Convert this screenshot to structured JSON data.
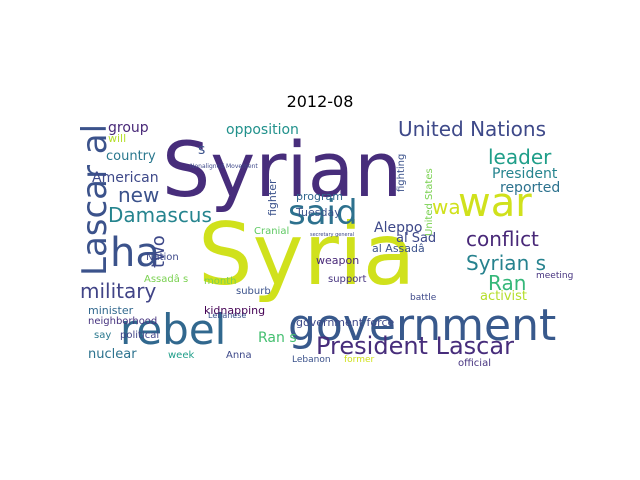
{
  "title": "2012-08",
  "words": [
    {
      "text": "Syria",
      "color": "#d0e11c"
    },
    {
      "text": "Syrian",
      "color": "#472d7b"
    },
    {
      "text": "government",
      "color": "#38598c"
    },
    {
      "text": "rebel",
      "color": "#31688e"
    },
    {
      "text": "war",
      "color": "#d0e11c"
    },
    {
      "text": "said",
      "color": "#2d718e"
    },
    {
      "text": "ha",
      "color": "#3b528b"
    },
    {
      "text": "President Lascar",
      "color": "#472d7b"
    },
    {
      "text": "Lascar al",
      "color": "#3b528b"
    },
    {
      "text": "United Nations",
      "color": "#3e4989"
    },
    {
      "text": "leader",
      "color": "#1f9e89"
    },
    {
      "text": "conflict",
      "color": "#482878"
    },
    {
      "text": "Syrian s",
      "color": "#26828e"
    },
    {
      "text": "Damascus",
      "color": "#25848e"
    },
    {
      "text": "military",
      "color": "#414487"
    },
    {
      "text": "new",
      "color": "#3b528b"
    },
    {
      "text": "Ran",
      "color": "#35b779"
    },
    {
      "text": "wa",
      "color": "#d0e11c"
    },
    {
      "text": "two",
      "color": "#3e4989"
    },
    {
      "text": "opposition",
      "color": "#21918c"
    },
    {
      "text": "American",
      "color": "#3e4989"
    },
    {
      "text": "country",
      "color": "#2a788e"
    },
    {
      "text": "group",
      "color": "#482878"
    },
    {
      "text": "President",
      "color": "#25848e"
    },
    {
      "text": "reported",
      "color": "#2c728e"
    },
    {
      "text": "Aleppo",
      "color": "#3e4989"
    },
    {
      "text": "al Sad",
      "color": "#3e4989"
    },
    {
      "text": "al Assadâ",
      "color": "#3b528b"
    },
    {
      "text": "Ran s",
      "color": "#44bf70"
    },
    {
      "text": "nuclear",
      "color": "#2c728e"
    },
    {
      "text": "activist",
      "color": "#b5de2b"
    },
    {
      "text": "government force",
      "color": "#3e4989"
    },
    {
      "text": "program",
      "color": "#31688e"
    },
    {
      "text": "Tuesday",
      "color": "#3b528b"
    },
    {
      "text": "fighter",
      "color": "#3b528b"
    },
    {
      "text": "weapon",
      "color": "#482878"
    },
    {
      "text": "support",
      "color": "#46337f"
    },
    {
      "text": "kidnapping",
      "color": "#440154"
    },
    {
      "text": "minister",
      "color": "#31688e"
    },
    {
      "text": "neighborhood",
      "color": "#46337f"
    },
    {
      "text": "say",
      "color": "#2a788e"
    },
    {
      "text": "political",
      "color": "#414487"
    },
    {
      "text": "week",
      "color": "#1f9e89"
    },
    {
      "text": "Anna",
      "color": "#3e4989"
    },
    {
      "text": "suburb",
      "color": "#3b528b"
    },
    {
      "text": "Cranial",
      "color": "#5ec962"
    },
    {
      "text": "month",
      "color": "#7ad151"
    },
    {
      "text": "Assadâ s",
      "color": "#7ad151"
    },
    {
      "text": "Nation",
      "color": "#3e4989"
    },
    {
      "text": "Lebanese",
      "color": "#3b528b"
    },
    {
      "text": "Lebanon",
      "color": "#3b528b"
    },
    {
      "text": "battle",
      "color": "#3e4989"
    },
    {
      "text": "meeting",
      "color": "#46337f"
    },
    {
      "text": "official",
      "color": "#46337f"
    },
    {
      "text": "former",
      "color": "#d0e11c"
    },
    {
      "text": "will",
      "color": "#b5de2b"
    },
    {
      "text": "United States",
      "color": "#7ad151"
    },
    {
      "text": "fighting",
      "color": "#3b528b"
    },
    {
      "text": "s",
      "color": "#3b528b"
    },
    {
      "text": "Nonaligned Movement",
      "color": "#3e4989"
    },
    {
      "text": "secretary general",
      "color": "#3e4989"
    }
  ]
}
